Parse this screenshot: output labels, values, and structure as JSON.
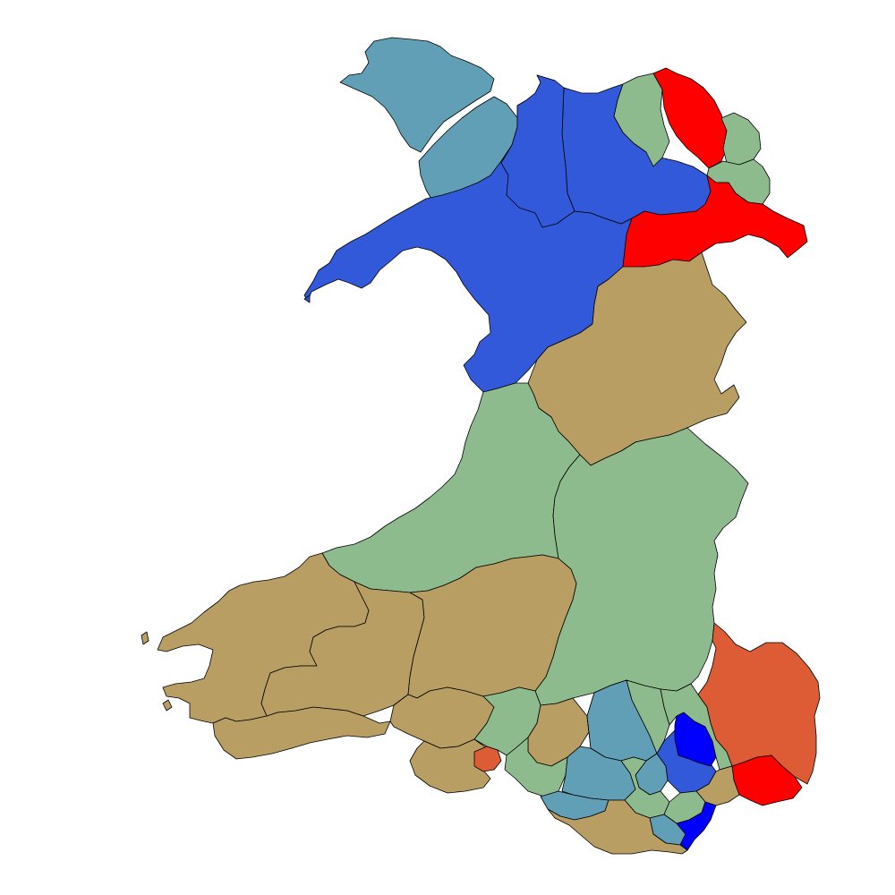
{
  "palette": {
    "tan": "#b89e62",
    "sage": "#8dbb8d",
    "steel_blue": "#609fb5",
    "royal_blue": "#3259d9",
    "pure_blue": "#0000ff",
    "red": "#ff0000",
    "orange_red": "#dd5c35",
    "background": "#ffffff",
    "border": "#000000"
  },
  "regions": [
    {
      "id": "anglesey",
      "color": "steel_blue"
    },
    {
      "id": "gwynedd",
      "color": "royal_blue"
    },
    {
      "id": "conwy",
      "color": "royal_blue"
    },
    {
      "id": "denbighshire",
      "color": "royal_blue"
    },
    {
      "id": "flintshire-west",
      "color": "sage"
    },
    {
      "id": "flintshire-east",
      "color": "red"
    },
    {
      "id": "flintshire-south",
      "color": "sage"
    },
    {
      "id": "wrexham-north",
      "color": "sage"
    },
    {
      "id": "wrexham",
      "color": "red"
    },
    {
      "id": "montgomeryshire",
      "color": "tan"
    },
    {
      "id": "ceredigion",
      "color": "sage"
    },
    {
      "id": "brecon-radnor",
      "color": "sage"
    },
    {
      "id": "pembrokeshire",
      "color": "tan"
    },
    {
      "id": "carmarthen-west",
      "color": "tan"
    },
    {
      "id": "carmarthen-east",
      "color": "tan"
    },
    {
      "id": "llanelli",
      "color": "tan"
    },
    {
      "id": "gower",
      "color": "tan"
    },
    {
      "id": "gower-tip",
      "color": "orange_red"
    },
    {
      "id": "swansea-east",
      "color": "sage"
    },
    {
      "id": "neath",
      "color": "tan"
    },
    {
      "id": "aberavon",
      "color": "sage"
    },
    {
      "id": "rhondda",
      "color": "steel_blue"
    },
    {
      "id": "cynon",
      "color": "tan"
    },
    {
      "id": "merthyr",
      "color": "steel_blue"
    },
    {
      "id": "ogmore",
      "color": "steel_blue"
    },
    {
      "id": "bridgend",
      "color": "steel_blue"
    },
    {
      "id": "pontypridd",
      "color": "sage"
    },
    {
      "id": "caerphilly",
      "color": "sage"
    },
    {
      "id": "islwyn",
      "color": "royal_blue"
    },
    {
      "id": "blaenau-gwent",
      "color": "pure_blue"
    },
    {
      "id": "torfaen",
      "color": "sage"
    },
    {
      "id": "monmouth",
      "color": "orange_red"
    },
    {
      "id": "newport-east",
      "color": "red"
    },
    {
      "id": "newport-west",
      "color": "tan"
    },
    {
      "id": "cardiff-north",
      "color": "sage"
    },
    {
      "id": "cardiff-south",
      "color": "pure_blue"
    },
    {
      "id": "cardiff-west",
      "color": "steel_blue"
    },
    {
      "id": "vale-of-glamorgan",
      "color": "tan"
    }
  ]
}
